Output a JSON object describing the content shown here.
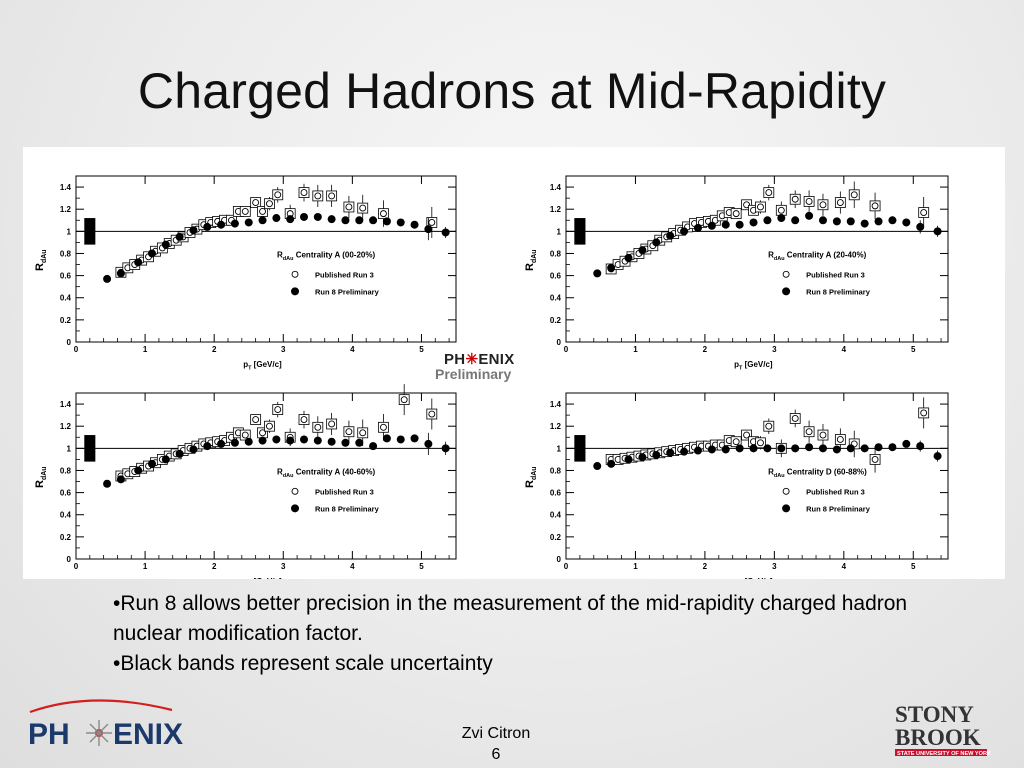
{
  "slide": {
    "title": "Charged Hadrons at Mid-Rapidity",
    "bullets": [
      "•Run 8 allows better precision in the measurement of the mid-rapidity charged hadron nuclear modification factor.",
      "•Black bands represent scale uncertainty"
    ],
    "author": "Zvi Citron",
    "page_number": "6"
  },
  "logos": {
    "phenix_left": "PH  ENIX",
    "phenix_preliminary_top": "PH  ENIX",
    "phenix_preliminary_bottom": "Preliminary",
    "stony_brook_line1": "STONY",
    "stony_brook_line2": "BROOK",
    "stony_brook_line3": "STATE UNIVERSITY OF NEW YORK"
  },
  "chart_data": [
    {
      "type": "scatter",
      "ylabel": "R_dAu",
      "xlabel": "p_T [GeV/c]",
      "xlim": [
        0,
        5.5
      ],
      "ylim": [
        0,
        1.5
      ],
      "yticks": [
        "0",
        "0.2",
        "0.4",
        "0.6",
        "0.8",
        "1",
        "1.2",
        "1.4"
      ],
      "xticks": [
        "0",
        "1",
        "2",
        "3",
        "4",
        "5"
      ],
      "legend_title": "Centrality A (00-20%)",
      "legend_prefix": "R_dAu",
      "reference_line": 1.0,
      "scale_uncertainty_band": [
        0.88,
        1.12
      ],
      "series": [
        {
          "name": "Published Run 3",
          "marker": "open-circle",
          "x": [
            0.65,
            0.75,
            0.85,
            0.95,
            1.05,
            1.15,
            1.25,
            1.35,
            1.45,
            1.55,
            1.65,
            1.75,
            1.85,
            1.95,
            2.05,
            2.15,
            2.25,
            2.35,
            2.45,
            2.6,
            2.7,
            2.8,
            2.92,
            3.1,
            3.3,
            3.5,
            3.7,
            3.95,
            4.15,
            4.45,
            5.15
          ],
          "y": [
            0.63,
            0.67,
            0.7,
            0.74,
            0.77,
            0.82,
            0.85,
            0.89,
            0.92,
            0.95,
            0.99,
            1.02,
            1.06,
            1.08,
            1.09,
            1.1,
            1.1,
            1.18,
            1.18,
            1.26,
            1.18,
            1.25,
            1.33,
            1.16,
            1.35,
            1.32,
            1.32,
            1.22,
            1.21,
            1.16,
            1.08
          ],
          "yerr": [
            0.01,
            0.01,
            0.01,
            0.01,
            0.01,
            0.01,
            0.01,
            0.01,
            0.01,
            0.01,
            0.01,
            0.01,
            0.01,
            0.01,
            0.01,
            0.01,
            0.01,
            0.02,
            0.03,
            0.04,
            0.04,
            0.06,
            0.07,
            0.08,
            0.08,
            0.1,
            0.1,
            0.1,
            0.12,
            0.12,
            0.14
          ]
        },
        {
          "name": "Run 8 Preliminary",
          "marker": "filled-circle",
          "x": [
            0.45,
            0.65,
            0.9,
            1.1,
            1.3,
            1.5,
            1.7,
            1.9,
            2.1,
            2.3,
            2.5,
            2.7,
            2.9,
            3.1,
            3.3,
            3.5,
            3.7,
            3.9,
            4.1,
            4.3,
            4.5,
            4.7,
            4.9,
            5.1,
            5.35
          ],
          "y": [
            0.57,
            0.62,
            0.72,
            0.8,
            0.88,
            0.95,
            1.01,
            1.04,
            1.06,
            1.07,
            1.08,
            1.1,
            1.12,
            1.11,
            1.13,
            1.13,
            1.11,
            1.1,
            1.1,
            1.1,
            1.09,
            1.08,
            1.06,
            1.02,
            0.99
          ],
          "yerr": [
            0,
            0,
            0,
            0,
            0,
            0,
            0,
            0,
            0,
            0,
            0,
            0,
            0,
            0,
            0,
            0,
            0,
            0,
            0,
            0,
            0,
            0,
            0.02,
            0.1,
            0.05
          ]
        }
      ]
    },
    {
      "type": "scatter",
      "ylabel": "R_dAu",
      "xlabel": "p_T [GeV/c]",
      "xlim": [
        0,
        5.5
      ],
      "ylim": [
        0,
        1.5
      ],
      "yticks": [
        "0",
        "0.2",
        "0.4",
        "0.6",
        "0.8",
        "1",
        "1.2",
        "1.4"
      ],
      "xticks": [
        "0",
        "1",
        "2",
        "3",
        "4",
        "5"
      ],
      "legend_title": "Centrality A (20-40%)",
      "legend_prefix": "R_dAu",
      "reference_line": 1.0,
      "scale_uncertainty_band": [
        0.88,
        1.12
      ],
      "series": [
        {
          "name": "Published Run 3",
          "marker": "open-circle",
          "x": [
            0.65,
            0.75,
            0.85,
            0.95,
            1.05,
            1.15,
            1.25,
            1.35,
            1.45,
            1.55,
            1.65,
            1.75,
            1.85,
            1.95,
            2.05,
            2.15,
            2.25,
            2.35,
            2.45,
            2.6,
            2.7,
            2.8,
            2.92,
            3.1,
            3.3,
            3.5,
            3.7,
            3.95,
            4.15,
            4.45,
            5.15
          ],
          "y": [
            0.66,
            0.7,
            0.73,
            0.77,
            0.8,
            0.84,
            0.87,
            0.92,
            0.95,
            0.98,
            1.01,
            1.04,
            1.07,
            1.08,
            1.09,
            1.1,
            1.14,
            1.17,
            1.16,
            1.24,
            1.19,
            1.22,
            1.35,
            1.19,
            1.29,
            1.27,
            1.24,
            1.26,
            1.33,
            1.23,
            1.17
          ],
          "yerr": [
            0.01,
            0.01,
            0.01,
            0.01,
            0.01,
            0.01,
            0.01,
            0.01,
            0.01,
            0.01,
            0.01,
            0.01,
            0.01,
            0.01,
            0.01,
            0.01,
            0.01,
            0.02,
            0.03,
            0.04,
            0.04,
            0.06,
            0.07,
            0.08,
            0.08,
            0.1,
            0.1,
            0.1,
            0.12,
            0.12,
            0.14
          ]
        },
        {
          "name": "Run 8 Preliminary",
          "marker": "filled-circle",
          "x": [
            0.45,
            0.65,
            0.9,
            1.1,
            1.3,
            1.5,
            1.7,
            1.9,
            2.1,
            2.3,
            2.5,
            2.7,
            2.9,
            3.1,
            3.3,
            3.5,
            3.7,
            3.9,
            4.1,
            4.3,
            4.5,
            4.7,
            4.9,
            5.1,
            5.35
          ],
          "y": [
            0.62,
            0.67,
            0.76,
            0.83,
            0.9,
            0.96,
            1.0,
            1.03,
            1.05,
            1.06,
            1.06,
            1.08,
            1.1,
            1.12,
            1.1,
            1.14,
            1.1,
            1.09,
            1.09,
            1.07,
            1.09,
            1.1,
            1.08,
            1.04,
            1.0
          ],
          "yerr": [
            0,
            0,
            0,
            0,
            0,
            0,
            0,
            0,
            0,
            0,
            0,
            0,
            0,
            0,
            0,
            0,
            0,
            0,
            0,
            0,
            0,
            0,
            0.02,
            0.06,
            0.05
          ]
        }
      ]
    },
    {
      "type": "scatter",
      "ylabel": "R_dAu",
      "xlabel": "p_T [GeV/c]",
      "xlim": [
        0,
        5.5
      ],
      "ylim": [
        0,
        1.5
      ],
      "yticks": [
        "0",
        "0.2",
        "0.4",
        "0.6",
        "0.8",
        "1",
        "1.2",
        "1.4"
      ],
      "xticks": [
        "0",
        "1",
        "2",
        "3",
        "4",
        "5"
      ],
      "legend_title": "Centrality A (40-60%)",
      "legend_prefix": "R_dAu",
      "reference_line": 1.0,
      "scale_uncertainty_band": [
        0.88,
        1.12
      ],
      "series": [
        {
          "name": "Published Run 3",
          "marker": "open-circle",
          "x": [
            0.65,
            0.75,
            0.85,
            0.95,
            1.05,
            1.15,
            1.25,
            1.35,
            1.45,
            1.55,
            1.65,
            1.75,
            1.85,
            1.95,
            2.05,
            2.15,
            2.25,
            2.35,
            2.45,
            2.6,
            2.7,
            2.8,
            2.92,
            3.1,
            3.3,
            3.5,
            3.7,
            3.95,
            4.15,
            4.45,
            4.75,
            5.15
          ],
          "y": [
            0.75,
            0.77,
            0.79,
            0.82,
            0.84,
            0.87,
            0.9,
            0.93,
            0.95,
            0.98,
            1.0,
            1.02,
            1.04,
            1.05,
            1.06,
            1.07,
            1.1,
            1.14,
            1.12,
            1.26,
            1.14,
            1.2,
            1.35,
            1.1,
            1.26,
            1.19,
            1.22,
            1.15,
            1.14,
            1.19,
            1.44,
            1.31
          ],
          "yerr": [
            0.01,
            0.01,
            0.01,
            0.01,
            0.01,
            0.01,
            0.01,
            0.01,
            0.01,
            0.01,
            0.01,
            0.01,
            0.01,
            0.01,
            0.01,
            0.01,
            0.01,
            0.02,
            0.03,
            0.04,
            0.04,
            0.06,
            0.07,
            0.08,
            0.08,
            0.1,
            0.1,
            0.1,
            0.12,
            0.12,
            0.14,
            0.14
          ]
        },
        {
          "name": "Run 8 Preliminary",
          "marker": "filled-circle",
          "x": [
            0.45,
            0.65,
            0.9,
            1.1,
            1.3,
            1.5,
            1.7,
            1.9,
            2.1,
            2.3,
            2.5,
            2.7,
            2.9,
            3.1,
            3.3,
            3.5,
            3.7,
            3.9,
            4.1,
            4.3,
            4.5,
            4.7,
            4.9,
            5.1,
            5.35
          ],
          "y": [
            0.68,
            0.72,
            0.8,
            0.86,
            0.9,
            0.95,
            0.99,
            1.02,
            1.04,
            1.05,
            1.06,
            1.07,
            1.08,
            1.07,
            1.08,
            1.07,
            1.06,
            1.05,
            1.05,
            1.02,
            1.09,
            1.08,
            1.09,
            1.04,
            1.0
          ],
          "yerr": [
            0,
            0,
            0,
            0,
            0,
            0,
            0,
            0,
            0,
            0,
            0,
            0,
            0,
            0,
            0,
            0,
            0,
            0,
            0,
            0,
            0,
            0.02,
            0.03,
            0.1,
            0.06
          ]
        }
      ]
    },
    {
      "type": "scatter",
      "ylabel": "R_dAu",
      "xlabel": "p_T [GeV/c]",
      "xlim": [
        0,
        5.5
      ],
      "ylim": [
        0,
        1.5
      ],
      "yticks": [
        "0",
        "0.2",
        "0.4",
        "0.6",
        "0.8",
        "1",
        "1.2",
        "1.4"
      ],
      "xticks": [
        "0",
        "1",
        "2",
        "3",
        "4",
        "5"
      ],
      "legend_title": "Centrality D (60-88%)",
      "legend_prefix": "R_dAu",
      "reference_line": 1.0,
      "scale_uncertainty_band": [
        0.88,
        1.12
      ],
      "series": [
        {
          "name": "Published Run 3",
          "marker": "open-circle",
          "x": [
            0.65,
            0.75,
            0.85,
            0.95,
            1.05,
            1.15,
            1.25,
            1.35,
            1.45,
            1.55,
            1.65,
            1.75,
            1.85,
            1.95,
            2.05,
            2.15,
            2.25,
            2.35,
            2.45,
            2.6,
            2.7,
            2.8,
            2.92,
            3.1,
            3.3,
            3.5,
            3.7,
            3.95,
            4.15,
            4.45,
            5.15
          ],
          "y": [
            0.9,
            0.9,
            0.91,
            0.92,
            0.93,
            0.94,
            0.95,
            0.96,
            0.97,
            0.98,
            0.99,
            1.0,
            1.01,
            1.02,
            1.02,
            1.03,
            1.03,
            1.07,
            1.06,
            1.12,
            1.06,
            1.05,
            1.2,
            1.0,
            1.27,
            1.15,
            1.12,
            1.08,
            1.04,
            0.9,
            1.32
          ],
          "yerr": [
            0.01,
            0.01,
            0.01,
            0.01,
            0.01,
            0.01,
            0.01,
            0.01,
            0.01,
            0.01,
            0.01,
            0.01,
            0.01,
            0.01,
            0.01,
            0.01,
            0.01,
            0.02,
            0.03,
            0.04,
            0.04,
            0.06,
            0.07,
            0.08,
            0.08,
            0.1,
            0.1,
            0.1,
            0.12,
            0.12,
            0.14
          ]
        },
        {
          "name": "Run 8 Preliminary",
          "marker": "filled-circle",
          "x": [
            0.45,
            0.65,
            0.9,
            1.1,
            1.3,
            1.5,
            1.7,
            1.9,
            2.1,
            2.3,
            2.5,
            2.7,
            2.9,
            3.1,
            3.3,
            3.5,
            3.7,
            3.9,
            4.1,
            4.3,
            4.5,
            4.7,
            4.9,
            5.1,
            5.35
          ],
          "y": [
            0.84,
            0.86,
            0.9,
            0.92,
            0.94,
            0.96,
            0.97,
            0.98,
            0.99,
            0.99,
            1.0,
            1.0,
            1.0,
            1.0,
            1.0,
            1.01,
            1.0,
            0.99,
            1.0,
            1.0,
            1.01,
            1.01,
            1.04,
            1.02,
            0.93
          ],
          "yerr": [
            0,
            0,
            0,
            0,
            0,
            0,
            0,
            0,
            0,
            0,
            0,
            0,
            0,
            0,
            0,
            0,
            0,
            0,
            0,
            0,
            0,
            0,
            0.03,
            0.05,
            0.05
          ]
        }
      ]
    }
  ]
}
